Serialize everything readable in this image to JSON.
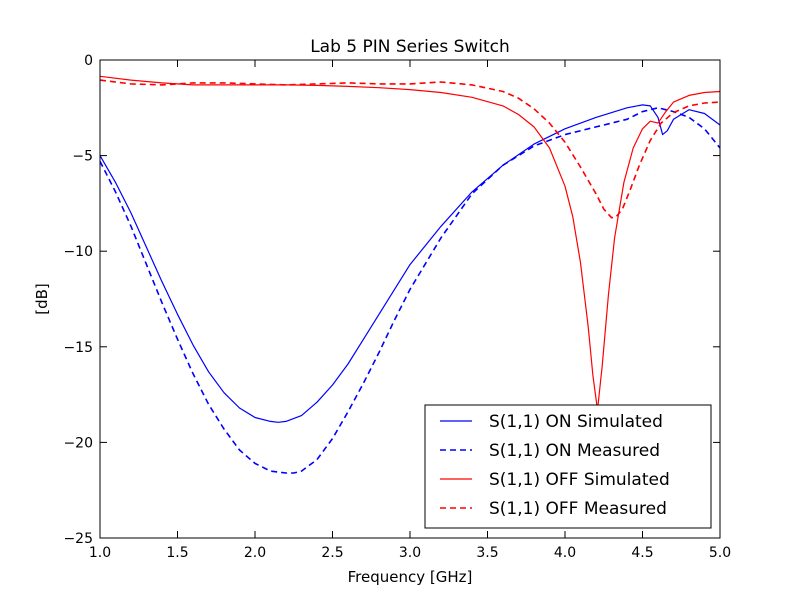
{
  "chart_data": {
    "type": "line",
    "title": "Lab 5 PIN Series Switch",
    "xlabel": "Frequency [GHz]",
    "ylabel": "[dB]",
    "xlim": [
      1.0,
      5.0
    ],
    "ylim": [
      -25,
      0
    ],
    "xticks": [
      1.0,
      1.5,
      2.0,
      2.5,
      3.0,
      3.5,
      4.0,
      4.5,
      5.0
    ],
    "xtick_labels": [
      "1.0",
      "1.5",
      "2.0",
      "2.5",
      "3.0",
      "3.5",
      "4.0",
      "4.5",
      "5.0"
    ],
    "yticks": [
      0,
      -5,
      -10,
      -15,
      -20,
      -25
    ],
    "ytick_labels": [
      "0",
      "−5",
      "−10",
      "−15",
      "−20",
      "−25"
    ],
    "grid": false,
    "legend_position": "lower-right",
    "series": [
      {
        "name": "S(1,1) ON Simulated",
        "color": "#0000ff",
        "style": "solid",
        "x": [
          1.0,
          1.1,
          1.2,
          1.3,
          1.4,
          1.5,
          1.6,
          1.7,
          1.8,
          1.9,
          2.0,
          2.1,
          2.15,
          2.2,
          2.3,
          2.4,
          2.5,
          2.6,
          2.7,
          2.8,
          2.9,
          3.0,
          3.2,
          3.4,
          3.6,
          3.8,
          4.0,
          4.2,
          4.4,
          4.5,
          4.55,
          4.6,
          4.63,
          4.66,
          4.7,
          4.8,
          4.9,
          5.0
        ],
        "y": [
          -5.0,
          -6.4,
          -8.0,
          -9.8,
          -11.6,
          -13.3,
          -14.9,
          -16.3,
          -17.4,
          -18.2,
          -18.7,
          -18.9,
          -18.95,
          -18.9,
          -18.6,
          -17.9,
          -17.0,
          -15.9,
          -14.6,
          -13.3,
          -12.0,
          -10.7,
          -8.7,
          -6.9,
          -5.5,
          -4.4,
          -3.6,
          -3.0,
          -2.5,
          -2.35,
          -2.4,
          -3.0,
          -3.9,
          -3.7,
          -3.1,
          -2.6,
          -2.8,
          -3.4
        ]
      },
      {
        "name": "S(1,1) ON Measured",
        "color": "#0000ff",
        "style": "dashed",
        "x": [
          1.0,
          1.1,
          1.2,
          1.3,
          1.4,
          1.5,
          1.6,
          1.7,
          1.8,
          1.9,
          2.0,
          2.1,
          2.2,
          2.25,
          2.3,
          2.4,
          2.5,
          2.6,
          2.7,
          2.8,
          2.9,
          3.0,
          3.2,
          3.4,
          3.6,
          3.8,
          4.0,
          4.2,
          4.4,
          4.5,
          4.6,
          4.7,
          4.8,
          4.9,
          5.0
        ],
        "y": [
          -5.3,
          -6.9,
          -8.7,
          -10.7,
          -12.7,
          -14.6,
          -16.4,
          -18.0,
          -19.3,
          -20.4,
          -21.1,
          -21.5,
          -21.6,
          -21.6,
          -21.5,
          -20.9,
          -19.8,
          -18.4,
          -16.9,
          -15.3,
          -13.6,
          -12.0,
          -9.3,
          -7.0,
          -5.5,
          -4.5,
          -3.9,
          -3.5,
          -3.1,
          -2.7,
          -2.5,
          -2.7,
          -3.0,
          -3.6,
          -4.6
        ]
      },
      {
        "name": "S(1,1) OFF Simulated",
        "color": "#ff0000",
        "style": "solid",
        "x": [
          1.0,
          1.2,
          1.4,
          1.6,
          1.8,
          2.0,
          2.2,
          2.4,
          2.6,
          2.8,
          3.0,
          3.2,
          3.4,
          3.6,
          3.7,
          3.8,
          3.9,
          4.0,
          4.05,
          4.1,
          4.15,
          4.18,
          4.21,
          4.24,
          4.28,
          4.32,
          4.38,
          4.44,
          4.5,
          4.55,
          4.6,
          4.65,
          4.7,
          4.8,
          4.9,
          5.0
        ],
        "y": [
          -0.85,
          -1.05,
          -1.2,
          -1.3,
          -1.3,
          -1.3,
          -1.3,
          -1.33,
          -1.38,
          -1.45,
          -1.55,
          -1.7,
          -1.95,
          -2.4,
          -2.85,
          -3.5,
          -4.6,
          -6.6,
          -8.2,
          -10.6,
          -14.0,
          -16.5,
          -18.3,
          -16.0,
          -12.3,
          -9.3,
          -6.4,
          -4.6,
          -3.6,
          -3.2,
          -3.3,
          -2.7,
          -2.2,
          -1.85,
          -1.7,
          -1.65
        ]
      },
      {
        "name": "S(1,1) OFF Measured",
        "color": "#ff0000",
        "style": "dashed",
        "x": [
          1.0,
          1.2,
          1.4,
          1.6,
          1.8,
          2.0,
          2.2,
          2.4,
          2.6,
          2.8,
          3.0,
          3.2,
          3.4,
          3.6,
          3.7,
          3.8,
          3.9,
          4.0,
          4.1,
          4.2,
          4.25,
          4.3,
          4.33,
          4.37,
          4.42,
          4.48,
          4.55,
          4.62,
          4.7,
          4.8,
          4.9,
          5.0
        ],
        "y": [
          -1.05,
          -1.25,
          -1.3,
          -1.2,
          -1.2,
          -1.25,
          -1.3,
          -1.25,
          -1.2,
          -1.25,
          -1.25,
          -1.15,
          -1.3,
          -1.65,
          -2.0,
          -2.55,
          -3.3,
          -4.3,
          -5.6,
          -7.0,
          -7.8,
          -8.25,
          -8.2,
          -7.8,
          -6.8,
          -5.5,
          -4.2,
          -3.3,
          -2.75,
          -2.4,
          -2.25,
          -2.2
        ]
      }
    ]
  }
}
